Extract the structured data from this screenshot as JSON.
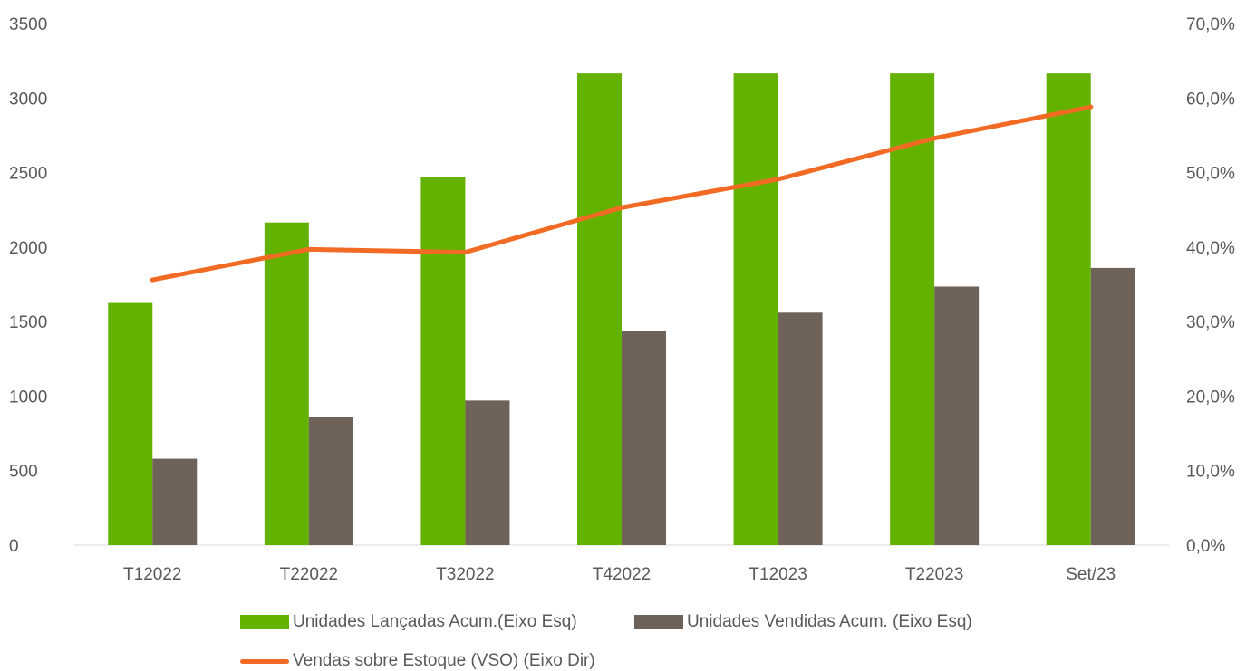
{
  "chart_data": {
    "type": "bar",
    "categories": [
      "T12022",
      "T22022",
      "T32022",
      "T42022",
      "T12023",
      "T22023",
      "Set/23"
    ],
    "series": [
      {
        "name": "Unidades Lançadas Acum.(Eixo Esq)",
        "type": "bar",
        "axis": "left",
        "color": "#64B200",
        "values": [
          1625,
          2165,
          2470,
          3165,
          3165,
          3165,
          3165
        ]
      },
      {
        "name": "Unidades Vendidas Acum. (Eixo Esq)",
        "type": "bar",
        "axis": "left",
        "color": "#6E6259",
        "values": [
          580,
          860,
          970,
          1435,
          1560,
          1735,
          1860
        ]
      },
      {
        "name": "Vendas sobre Estoque (VSO) (Eixo Dir)",
        "type": "line",
        "axis": "right",
        "color": "#F26B24",
        "values": [
          35.6,
          39.7,
          39.3,
          45.3,
          49.1,
          54.6,
          58.8
        ]
      }
    ],
    "y_left": {
      "min": 0,
      "max": 3500,
      "ticks": [
        "0",
        "500",
        "1000",
        "1500",
        "2000",
        "2500",
        "3000",
        "3500"
      ]
    },
    "y_right": {
      "min": 0,
      "max": 70,
      "ticks": [
        "0,0%",
        "10,0%",
        "20,0%",
        "30,0%",
        "40,0%",
        "50,0%",
        "60,0%",
        "70,0%"
      ]
    },
    "grid": false,
    "legend_position": "bottom",
    "title": "",
    "xlabel": "",
    "ylabel": ""
  }
}
